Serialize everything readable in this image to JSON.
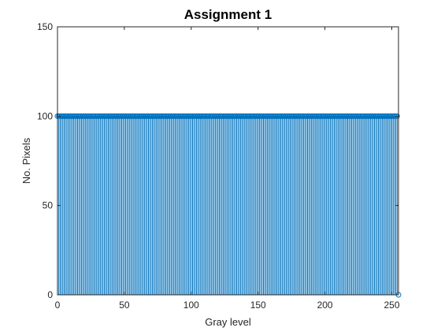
{
  "chart_data": {
    "type": "stem",
    "title": "Assignment 1",
    "xlabel": "Gray level",
    "ylabel": "No. Pixels",
    "xlim": [
      0,
      255
    ],
    "ylim": [
      0,
      150
    ],
    "xticks": [
      0,
      50,
      100,
      150,
      200,
      250
    ],
    "yticks": [
      0,
      50,
      100,
      150
    ],
    "xtick_labels": [
      "0",
      "50",
      "100",
      "150",
      "200",
      "250"
    ],
    "ytick_labels": [
      "0",
      "50",
      "100",
      "150"
    ],
    "grid": false,
    "series": [
      {
        "color": "#0072BD",
        "marker": "circle-open",
        "x_start": 0,
        "x_end": 255,
        "value": 100,
        "exceptions": [
          {
            "x": 255,
            "y": 0
          }
        ]
      }
    ]
  }
}
